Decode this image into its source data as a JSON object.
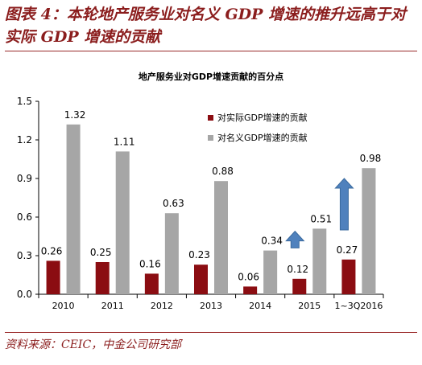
{
  "figure": {
    "title": "图表 4：本轮地产服务业对名义 GDP 增速的推升远高于对实际 GDP 增速的贡献",
    "source": "资料来源：CEIC，中金公司研究部"
  },
  "chart_data": {
    "type": "bar",
    "title": "地产服务业对GDP增速贡献的百分点",
    "xlabel": "",
    "ylabel": "",
    "categories": [
      "2010",
      "2011",
      "2012",
      "2013",
      "2014",
      "2015",
      "1~3Q2016"
    ],
    "series": [
      {
        "name": "对实际GDP增速的贡献",
        "values": [
          0.26,
          0.25,
          0.16,
          0.23,
          0.06,
          0.12,
          0.27
        ],
        "color": "#8b0d12"
      },
      {
        "name": "对名义GDP增速的贡献",
        "values": [
          1.32,
          1.11,
          0.63,
          0.88,
          0.34,
          0.51,
          0.98
        ],
        "color": "#a6a6a6"
      }
    ],
    "ylim": [
      0,
      1.5
    ],
    "yticks": [
      "0.0",
      "0.3",
      "0.6",
      "0.9",
      "1.2",
      "1.5"
    ],
    "grid": false,
    "legend_position": "top-right",
    "annotations": [
      {
        "type": "up-arrow",
        "category": "2015",
        "color": "#4f81bd"
      },
      {
        "type": "up-arrow",
        "category": "1~3Q2016",
        "color": "#4f81bd"
      }
    ]
  }
}
